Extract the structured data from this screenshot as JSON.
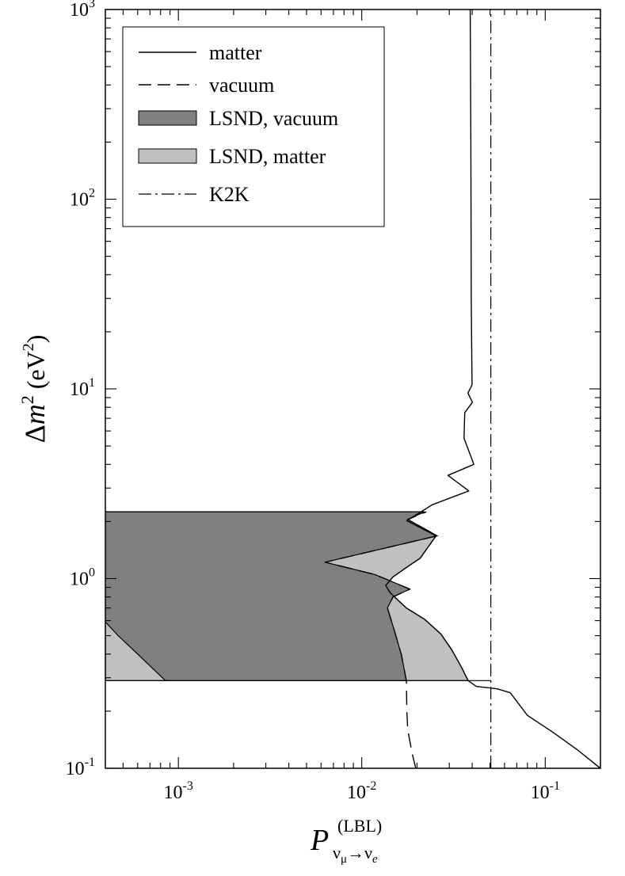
{
  "chart_data": {
    "type": "line",
    "title": "",
    "xscale": "log",
    "yscale": "log",
    "xlim": [
      0.0004,
      0.2
    ],
    "ylim": [
      0.1,
      1000
    ],
    "grid": false,
    "legend_position": "top-left",
    "xlabel": {
      "main": "P",
      "superscript": "(LBL)",
      "subscript": "ν",
      "subscript_sub1": "μ",
      "arrow": "→",
      "subscript2": "ν",
      "subscript_sub2": "e"
    },
    "ylabel": {
      "delta": "Δ",
      "m": "m",
      "exp": "2",
      "open": " (eV",
      "unit_exp": "2",
      "close": ")"
    },
    "x_ticks": [
      {
        "base": "10",
        "exp": "-3",
        "value": 0.001
      },
      {
        "base": "10",
        "exp": "-2",
        "value": 0.01
      },
      {
        "base": "10",
        "exp": "-1",
        "value": 0.1
      }
    ],
    "y_ticks": [
      {
        "base": "10",
        "exp": "-1",
        "value": 0.1
      },
      {
        "base": "10",
        "exp": "0",
        "value": 1
      },
      {
        "base": "10",
        "exp": "1",
        "value": 10
      },
      {
        "base": "10",
        "exp": "2",
        "value": 100
      },
      {
        "base": "10",
        "exp": "3",
        "value": 1000
      }
    ],
    "legend": [
      {
        "label": "matter",
        "style": "solid"
      },
      {
        "label": "vacuum",
        "style": "dashed"
      },
      {
        "label": "LSND, vacuum",
        "style": "fill-dark"
      },
      {
        "label": "LSND, matter",
        "style": "fill-light"
      },
      {
        "label": "K2K",
        "style": "dashdot"
      }
    ],
    "colors": {
      "lsnd_vacuum": "#808080",
      "lsnd_matter": "#c0c0c0",
      "line": "#000000"
    },
    "series": [
      {
        "name": "matter",
        "style": "solid",
        "points": [
          [
            0.1999,
            0.1
          ],
          [
            0.15,
            0.125
          ],
          [
            0.11,
            0.155
          ],
          [
            0.08,
            0.19
          ],
          [
            0.0645,
            0.25
          ],
          [
            0.055,
            0.262
          ],
          [
            0.05,
            0.265
          ],
          [
            0.0421,
            0.27
          ],
          [
            0.038,
            0.29
          ],
          [
            0.035,
            0.34
          ],
          [
            0.031,
            0.42
          ],
          [
            0.027,
            0.51
          ],
          [
            0.022,
            0.61
          ],
          [
            0.0175,
            0.7
          ],
          [
            0.0143,
            0.84
          ],
          [
            0.0135,
            0.92
          ],
          [
            0.0148,
            1.02
          ],
          [
            0.0174,
            1.14
          ],
          [
            0.0208,
            1.28
          ],
          [
            0.0254,
            1.68
          ],
          [
            0.0176,
            2.02
          ],
          [
            0.0242,
            2.45
          ],
          [
            0.0383,
            2.9
          ],
          [
            0.0295,
            3.5
          ],
          [
            0.0408,
            4.0
          ],
          [
            0.0361,
            5.5
          ],
          [
            0.0364,
            7.5
          ],
          [
            0.0401,
            8.5
          ],
          [
            0.0379,
            9.5
          ],
          [
            0.0399,
            10.5
          ],
          [
            0.0395,
            30
          ],
          [
            0.0393,
            200
          ],
          [
            0.039,
            1000
          ]
        ]
      },
      {
        "name": "vacuum",
        "style": "dashed",
        "points": [
          [
            0.0197,
            0.1
          ],
          [
            0.0188,
            0.12
          ],
          [
            0.0178,
            0.16
          ],
          [
            0.0176,
            0.2
          ],
          [
            0.0175,
            0.29
          ],
          [
            0.0164,
            0.4
          ],
          [
            0.0149,
            0.55
          ],
          [
            0.0138,
            0.7
          ],
          [
            0.0148,
            0.8
          ],
          [
            0.0183,
            0.88
          ],
          [
            0.0118,
            1.05
          ],
          [
            0.0063,
            1.22
          ],
          [
            0.0258,
            1.68
          ],
          [
            0.0178,
            2.05
          ],
          [
            0.0225,
            2.25
          ]
        ]
      },
      {
        "name": "K2K",
        "style": "dashdot",
        "points": [
          [
            0.0505,
            0.1
          ],
          [
            0.0505,
            1000
          ]
        ]
      }
    ],
    "regions": [
      {
        "name": "LSND, matter",
        "y_range": [
          0.29,
          2.25
        ],
        "boundary": [
          [
            0.0004,
            0.29
          ],
          [
            0.0004,
            2.25
          ],
          [
            0.022,
            2.25
          ],
          [
            0.0176,
            2.05
          ],
          [
            0.0254,
            1.68
          ],
          [
            0.0208,
            1.28
          ],
          [
            0.0174,
            1.14
          ],
          [
            0.0148,
            1.02
          ],
          [
            0.0135,
            0.92
          ],
          [
            0.0143,
            0.84
          ],
          [
            0.0175,
            0.7
          ],
          [
            0.022,
            0.61
          ],
          [
            0.027,
            0.51
          ],
          [
            0.031,
            0.42
          ],
          [
            0.035,
            0.34
          ],
          [
            0.038,
            0.29
          ]
        ]
      },
      {
        "name": "LSND, vacuum",
        "y_range": [
          0.29,
          2.25
        ],
        "boundary": [
          [
            0.00085,
            0.29
          ],
          [
            0.0006,
            0.4
          ],
          [
            0.00047,
            0.5
          ],
          [
            0.00037,
            0.64
          ],
          [
            0.00032,
            0.78
          ],
          [
            0.00029,
            0.9
          ],
          [
            0.00026,
            1.06
          ],
          [
            0.00024,
            1.26
          ],
          [
            0.000225,
            1.55
          ],
          [
            0.00024,
            1.85
          ],
          [
            0.00026,
            2.08
          ],
          [
            0.00029,
            2.25
          ],
          [
            0.022,
            2.25
          ],
          [
            0.0178,
            2.05
          ],
          [
            0.0258,
            1.68
          ],
          [
            0.0063,
            1.22
          ],
          [
            0.0118,
            1.05
          ],
          [
            0.0183,
            0.88
          ],
          [
            0.0148,
            0.8
          ],
          [
            0.0138,
            0.7
          ],
          [
            0.0149,
            0.55
          ],
          [
            0.0164,
            0.4
          ],
          [
            0.0175,
            0.29
          ]
        ]
      }
    ]
  }
}
